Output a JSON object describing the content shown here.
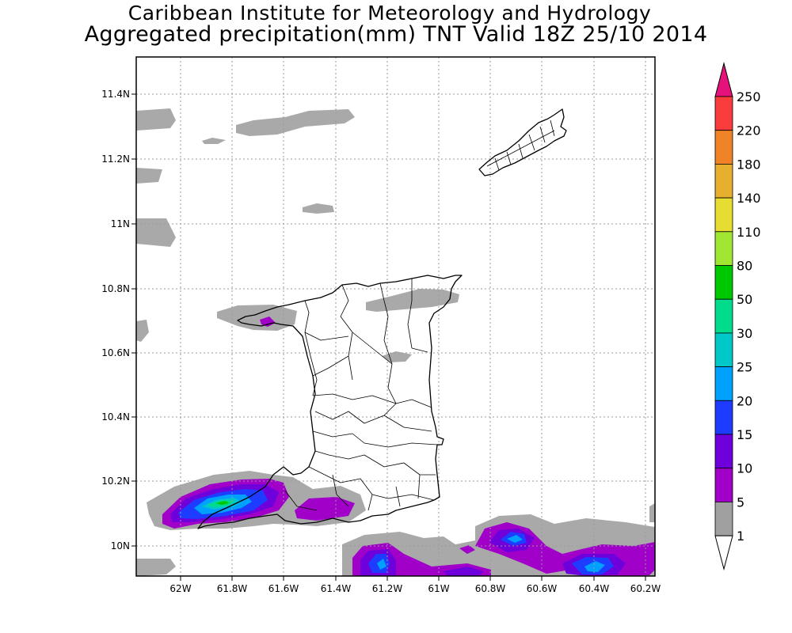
{
  "titles": {
    "line1": "Caribbean Institute for Meteorology and Hydrology",
    "line2": "Aggregated precipitation(mm) TNT Valid 18Z 25/10 2014"
  },
  "map": {
    "region": "Trinidad and Tobago",
    "lat_labels": [
      "11.4N",
      "11.2N",
      "11N",
      "10.8N",
      "10.6N",
      "10.4N",
      "10.2N",
      "10N"
    ],
    "lon_labels": [
      "62W",
      "61.8W",
      "61.6W",
      "61.4W",
      "61.2W",
      "61W",
      "60.8W",
      "60.6W",
      "60.4W",
      "60.2W"
    ],
    "grid": "dotted"
  },
  "colorbar": {
    "labels": [
      "250",
      "220",
      "180",
      "140",
      "110",
      "80",
      "50",
      "30",
      "25",
      "20",
      "15",
      "10",
      "5",
      "1"
    ],
    "colors": [
      "#fa3c3c",
      "#f08228",
      "#e6af2d",
      "#e6dc32",
      "#a0e632",
      "#00c800",
      "#00dc8c",
      "#00c8c8",
      "#00a0ff",
      "#1e3cff",
      "#6e00dc",
      "#a000c8",
      "#a0a0a0",
      "#ffffff"
    ],
    "top_arrow_color": "#e6127c",
    "bottom_arrow_color": "#ffffff"
  },
  "precip_colors": {
    "gray": "#a9a9a9",
    "purple": "#a000c8",
    "violet": "#6e00dc",
    "blue": "#1e3cff",
    "lightblue": "#00a0ff",
    "cyan": "#00c8c8",
    "teal": "#00dc8c",
    "green": "#00c800"
  }
}
